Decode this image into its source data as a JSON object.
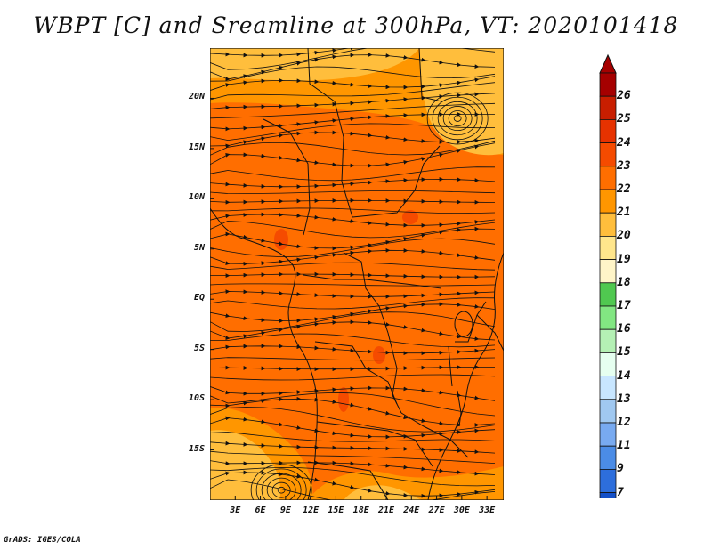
{
  "title": "WBPT [C] and Sreamline at 300hPa, VT: 2020101418",
  "credit": "GrADS: IGES/COLA",
  "map": {
    "variable": "Wet-bulb potential temperature [C]",
    "overlay": "Streamlines at 300hPa",
    "valid_time": "2020101418",
    "lat_labels": [
      "20N",
      "15N",
      "10N",
      "5N",
      "EQ",
      "5S",
      "10S",
      "15S"
    ],
    "lat_values": [
      20,
      15,
      10,
      5,
      0,
      -5,
      -10,
      -15
    ],
    "lon_labels": [
      "3E",
      "6E",
      "9E",
      "12E",
      "15E",
      "18E",
      "21E",
      "24E",
      "27E",
      "30E",
      "33E"
    ],
    "lon_values": [
      3,
      6,
      9,
      12,
      15,
      18,
      21,
      24,
      27,
      30,
      33
    ],
    "lat_range": [
      -20,
      25
    ],
    "lon_range": [
      0,
      35
    ],
    "cyclone_centers": [
      {
        "lon": 29.5,
        "lat": 18
      },
      {
        "lon": 8.5,
        "lat": -19
      }
    ]
  },
  "colorbar": {
    "labels": [
      "26",
      "25",
      "24",
      "23",
      "22",
      "21",
      "20",
      "19",
      "18",
      "17",
      "16",
      "15",
      "14",
      "13",
      "12",
      "11",
      "9",
      "7"
    ],
    "colors": [
      "#a50000",
      "#c81e00",
      "#e63200",
      "#f54b00",
      "#ff6e00",
      "#ff9600",
      "#ffbe3c",
      "#ffe68c",
      "#fff5c8",
      "#50c850",
      "#82e682",
      "#b4f0b4",
      "#e6fff0",
      "#c8e6ff",
      "#a0c8f0",
      "#78aaf0",
      "#4b8ce6",
      "#2d6edc",
      "#1450c8"
    ]
  }
}
